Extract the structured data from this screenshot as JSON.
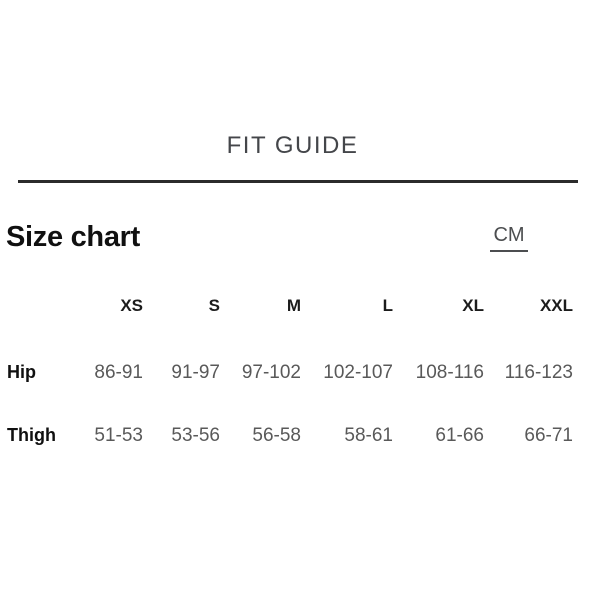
{
  "fit_guide": {
    "title": "FIT GUIDE"
  },
  "size_chart": {
    "heading": "Size chart",
    "unit_label": "CM",
    "columns": [
      "XS",
      "S",
      "M",
      "L",
      "XL",
      "XXL"
    ],
    "rows": [
      {
        "label": "Hip",
        "values": [
          "86-91",
          "91-97",
          "97-102",
          "102-107",
          "108-116",
          "116-123"
        ]
      },
      {
        "label": "Thigh",
        "values": [
          "51-53",
          "53-56",
          "56-58",
          "58-61",
          "61-66",
          "66-71"
        ]
      }
    ]
  },
  "colors": {
    "title": "#44464a",
    "divider": "#2b2b2b",
    "heading": "#101010",
    "unit_link": "#4c4e50",
    "column_header": "#1c1c1c",
    "row_label": "#101010",
    "value": "#595959",
    "background": "#ffffff"
  }
}
